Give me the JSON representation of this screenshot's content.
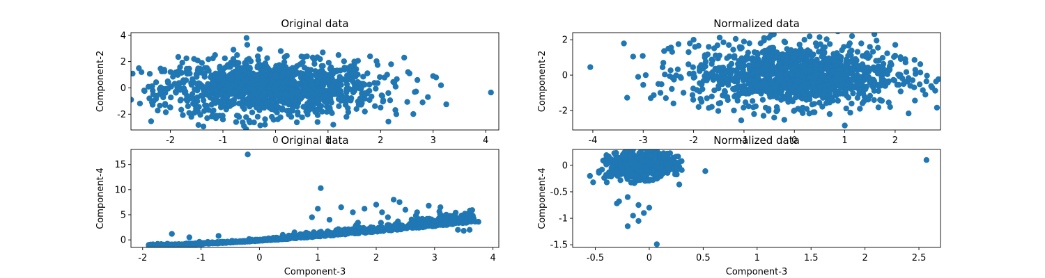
{
  "figure": {
    "marker_color": "#1f77b4"
  },
  "chart_data": [
    {
      "type": "scatter",
      "title": "Original data",
      "xlabel": "",
      "ylabel": "Component-2",
      "xlim": [
        -2.75,
        4.25
      ],
      "ylim": [
        -3.2,
        4.2
      ],
      "xticks": [
        -2,
        -1,
        0,
        1,
        2,
        3,
        4
      ],
      "yticks": [
        -2,
        0,
        2,
        4
      ],
      "grid": false,
      "points": [
        [
          -2.6,
          1.5
        ],
        [
          -2.55,
          1.2
        ],
        [
          -2.5,
          -0.2
        ],
        [
          -2.4,
          -0.8
        ],
        [
          -2.35,
          -1.1
        ],
        [
          -2.2,
          -1.35
        ],
        [
          -2.1,
          -1.3
        ],
        [
          -2.05,
          0.5
        ],
        [
          -1.95,
          0.85
        ],
        [
          -1.9,
          -0.3
        ],
        [
          -1.85,
          2.35
        ],
        [
          -1.8,
          -0.9
        ],
        [
          -1.75,
          0.4
        ],
        [
          -1.7,
          1.2
        ],
        [
          -1.6,
          -2.2
        ],
        [
          -1.55,
          2.2
        ],
        [
          -1.5,
          -1.5
        ],
        [
          -1.45,
          0.1
        ],
        [
          -1.4,
          1.9
        ],
        [
          -1.3,
          -2.3
        ],
        [
          -1.2,
          -1.8
        ],
        [
          -1.15,
          2.5
        ],
        [
          -1.0,
          -2.4
        ],
        [
          -0.9,
          1.6
        ],
        [
          -0.8,
          2.9
        ],
        [
          -0.75,
          -2.6
        ],
        [
          -0.55,
          3.8
        ],
        [
          -0.6,
          -2.9
        ],
        [
          -0.5,
          -2.5
        ],
        [
          -0.3,
          2.95
        ],
        [
          -0.2,
          -2.8
        ],
        [
          0.1,
          2.8
        ],
        [
          0.3,
          -2.2
        ],
        [
          0.6,
          2.4
        ],
        [
          0.8,
          -2.6
        ],
        [
          0.9,
          2.7
        ],
        [
          1.1,
          -2.8
        ],
        [
          1.2,
          2.5
        ],
        [
          1.35,
          -2.2
        ],
        [
          1.5,
          2.0
        ],
        [
          1.7,
          -1.8
        ],
        [
          1.8,
          2.4
        ],
        [
          2.0,
          -1.5
        ],
        [
          2.2,
          1.8
        ],
        [
          2.3,
          -2.0
        ],
        [
          2.45,
          2.3
        ],
        [
          2.55,
          1.1
        ],
        [
          2.7,
          0.6
        ],
        [
          2.8,
          -1.1
        ],
        [
          2.9,
          -0.7
        ],
        [
          3.0,
          0.9
        ],
        [
          3.15,
          0.2
        ],
        [
          3.25,
          -1.25
        ],
        [
          4.1,
          -0.35
        ]
      ],
      "cloud": {
        "cx": -0.1,
        "cy": 0.0,
        "sx": 1.0,
        "sy": 1.0,
        "n": 1200
      }
    },
    {
      "type": "scatter",
      "title": "Normalized data",
      "xlabel": "",
      "ylabel": "Component-2",
      "xlim": [
        -4.4,
        2.9
      ],
      "ylim": [
        -3.1,
        2.4
      ],
      "xticks": [
        -4,
        -3,
        -2,
        -1,
        0,
        1,
        2
      ],
      "yticks": [
        -2,
        0,
        2
      ],
      "grid": false,
      "points": [
        [
          -4.05,
          0.45
        ],
        [
          -3.2,
          1.05
        ],
        [
          -3.1,
          -0.1
        ],
        [
          -3.0,
          -0.55
        ],
        [
          -2.95,
          0.0
        ],
        [
          -2.85,
          -1.3
        ],
        [
          -2.7,
          -0.5
        ],
        [
          -2.6,
          0.7
        ],
        [
          -2.5,
          1.5
        ],
        [
          -2.4,
          -1.6
        ],
        [
          -2.3,
          1.75
        ],
        [
          -2.2,
          -1.0
        ],
        [
          -2.1,
          1.3
        ],
        [
          -2.0,
          2.0
        ],
        [
          -1.9,
          -1.8
        ],
        [
          -1.7,
          1.6
        ],
        [
          -1.5,
          -1.6
        ],
        [
          -1.3,
          1.7
        ],
        [
          -1.2,
          -2.0
        ],
        [
          -1.0,
          1.9
        ],
        [
          -0.8,
          -2.2
        ],
        [
          -0.6,
          2.1
        ],
        [
          -0.4,
          -2.4
        ],
        [
          -0.2,
          1.9
        ],
        [
          0.0,
          -2.0
        ],
        [
          0.2,
          2.0
        ],
        [
          0.4,
          -2.1
        ],
        [
          0.5,
          2.15
        ],
        [
          0.7,
          -2.2
        ],
        [
          1.0,
          -2.85
        ],
        [
          1.1,
          1.8
        ],
        [
          1.3,
          -1.9
        ],
        [
          1.5,
          1.6
        ],
        [
          1.7,
          -1.4
        ],
        [
          1.9,
          -1.8
        ],
        [
          2.0,
          1.1
        ],
        [
          2.2,
          0.9
        ],
        [
          2.3,
          -0.6
        ],
        [
          2.4,
          0.3
        ],
        [
          2.5,
          0.15
        ],
        [
          2.55,
          -0.85
        ],
        [
          2.6,
          -1.1
        ]
      ],
      "cloud": {
        "cx": 0.0,
        "cy": 0.0,
        "sx": 1.0,
        "sy": 0.85,
        "n": 1200
      }
    },
    {
      "type": "scatter",
      "title": "Original data",
      "xlabel": "Component-3",
      "ylabel": "Component-4",
      "xlim": [
        -2.2,
        4.1
      ],
      "ylim": [
        -1.5,
        18.0
      ],
      "xticks": [
        -2,
        -1,
        0,
        1,
        2,
        3,
        4
      ],
      "yticks": [
        0,
        5,
        10,
        15
      ],
      "grid": false,
      "points": [
        [
          -0.2,
          17.0
        ],
        [
          1.05,
          10.3
        ],
        [
          1.0,
          6.2
        ],
        [
          0.9,
          4.5
        ],
        [
          1.2,
          4.0
        ],
        [
          1.4,
          6.5
        ],
        [
          1.6,
          5.5
        ],
        [
          1.8,
          6.2
        ],
        [
          2.0,
          7.0
        ],
        [
          2.1,
          5.5
        ],
        [
          2.2,
          4.5
        ],
        [
          2.3,
          8.0
        ],
        [
          2.4,
          7.5
        ],
        [
          2.5,
          6.0
        ],
        [
          2.7,
          5.5
        ],
        [
          2.9,
          6.8
        ],
        [
          3.0,
          3.8
        ],
        [
          3.1,
          6.5
        ],
        [
          3.2,
          5.0
        ],
        [
          3.3,
          4.5
        ],
        [
          3.4,
          2.0
        ],
        [
          3.5,
          1.8
        ],
        [
          3.6,
          2.0
        ],
        [
          3.75,
          3.6
        ],
        [
          -1.5,
          1.2
        ],
        [
          -1.2,
          0.5
        ],
        [
          -0.7,
          0.8
        ],
        [
          0.4,
          1.0
        ],
        [
          0.6,
          1.5
        ],
        [
          0.8,
          1.2
        ]
      ],
      "curve": {
        "x0": -1.9,
        "x1": 3.7,
        "n": 900
      }
    },
    {
      "type": "scatter",
      "title": "Normalized data",
      "xlabel": "Component-3",
      "ylabel": "Component-4",
      "xlim": [
        -0.71,
        2.7
      ],
      "ylim": [
        -1.55,
        0.3
      ],
      "xticks": [
        -0.5,
        0.0,
        0.5,
        1.0,
        1.5,
        2.0,
        2.5
      ],
      "yticks": [
        -1.5,
        -1.0,
        -0.5,
        0.0
      ],
      "grid": false,
      "points": [
        [
          2.57,
          0.1
        ],
        [
          0.07,
          -1.49
        ],
        [
          -0.2,
          -1.15
        ],
        [
          -0.1,
          -1.05
        ],
        [
          -0.15,
          -0.95
        ],
        [
          -0.05,
          -0.9
        ],
        [
          -0.3,
          -0.72
        ],
        [
          -0.28,
          -0.68
        ],
        [
          -0.2,
          -0.6
        ],
        [
          -0.1,
          -0.75
        ],
        [
          0.0,
          -0.8
        ],
        [
          -0.55,
          -0.2
        ],
        [
          -0.52,
          -0.32
        ],
        [
          -0.4,
          -0.18
        ],
        [
          0.3,
          0.08
        ],
        [
          0.25,
          0.05
        ],
        [
          0.2,
          0.1
        ],
        [
          -0.35,
          -0.05
        ]
      ],
      "cloud": {
        "cx": -0.08,
        "cy": 0.0,
        "sx": 0.14,
        "sy": 0.12,
        "n": 700
      }
    }
  ]
}
